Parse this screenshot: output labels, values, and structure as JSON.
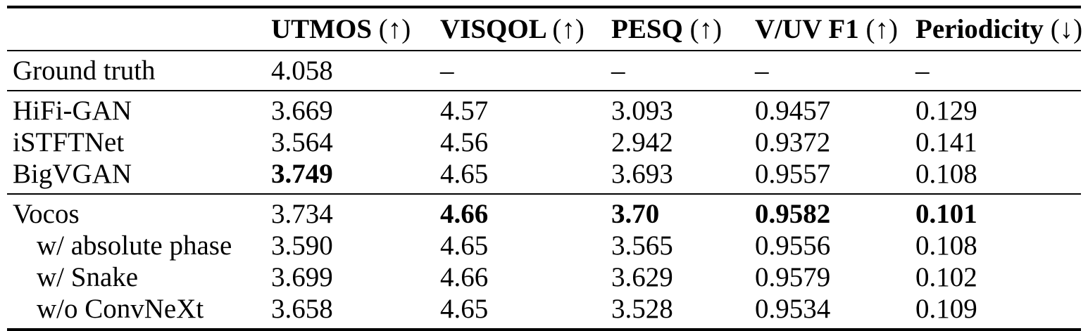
{
  "colors": {
    "background": "#ffffff",
    "text": "#000000",
    "rule": "#000000"
  },
  "table": {
    "corner_label": "",
    "columns": [
      {
        "name": "UTMOS",
        "suffix": "(↑)"
      },
      {
        "name": "VISQOL",
        "suffix": "(↑)"
      },
      {
        "name": "PESQ",
        "suffix": "(↑)"
      },
      {
        "name": "V/UV F1",
        "suffix": "(↑)"
      },
      {
        "name": "Periodicity",
        "suffix": "(↓)"
      }
    ],
    "groups": [
      {
        "name": "ground-truth",
        "rows": [
          {
            "label": "Ground truth",
            "indent": false,
            "cells": [
              {
                "text": "4.058",
                "bold": false
              },
              {
                "text": "–",
                "bold": false
              },
              {
                "text": "–",
                "bold": false
              },
              {
                "text": "–",
                "bold": false
              },
              {
                "text": "–",
                "bold": false
              }
            ]
          }
        ]
      },
      {
        "name": "baselines",
        "rows": [
          {
            "label": "HiFi-GAN",
            "indent": false,
            "cells": [
              {
                "text": "3.669",
                "bold": false
              },
              {
                "text": "4.57",
                "bold": false
              },
              {
                "text": "3.093",
                "bold": false
              },
              {
                "text": "0.9457",
                "bold": false
              },
              {
                "text": "0.129",
                "bold": false
              }
            ]
          },
          {
            "label": "iSTFTNet",
            "indent": false,
            "cells": [
              {
                "text": "3.564",
                "bold": false
              },
              {
                "text": "4.56",
                "bold": false
              },
              {
                "text": "2.942",
                "bold": false
              },
              {
                "text": "0.9372",
                "bold": false
              },
              {
                "text": "0.141",
                "bold": false
              }
            ]
          },
          {
            "label": "BigVGAN",
            "indent": false,
            "cells": [
              {
                "text": "3.749",
                "bold": true
              },
              {
                "text": "4.65",
                "bold": false
              },
              {
                "text": "3.693",
                "bold": false
              },
              {
                "text": "0.9557",
                "bold": false
              },
              {
                "text": "0.108",
                "bold": false
              }
            ]
          }
        ]
      },
      {
        "name": "vocos-and-ablations",
        "rows": [
          {
            "label": "Vocos",
            "indent": false,
            "cells": [
              {
                "text": "3.734",
                "bold": false
              },
              {
                "text": "4.66",
                "bold": true
              },
              {
                "text": "3.70",
                "bold": true
              },
              {
                "text": "0.9582",
                "bold": true
              },
              {
                "text": "0.101",
                "bold": true
              }
            ]
          },
          {
            "label": "w/ absolute phase",
            "indent": true,
            "cells": [
              {
                "text": "3.590",
                "bold": false
              },
              {
                "text": "4.65",
                "bold": false
              },
              {
                "text": "3.565",
                "bold": false
              },
              {
                "text": "0.9556",
                "bold": false
              },
              {
                "text": "0.108",
                "bold": false
              }
            ]
          },
          {
            "label": "w/ Snake",
            "indent": true,
            "cells": [
              {
                "text": "3.699",
                "bold": false
              },
              {
                "text": "4.66",
                "bold": false
              },
              {
                "text": "3.629",
                "bold": false
              },
              {
                "text": "0.9579",
                "bold": false
              },
              {
                "text": "0.102",
                "bold": false
              }
            ]
          },
          {
            "label": "w/o ConvNeXt",
            "indent": true,
            "cells": [
              {
                "text": "3.658",
                "bold": false
              },
              {
                "text": "4.65",
                "bold": false
              },
              {
                "text": "3.528",
                "bold": false
              },
              {
                "text": "0.9534",
                "bold": false
              },
              {
                "text": "0.109",
                "bold": false
              }
            ]
          }
        ]
      }
    ]
  }
}
